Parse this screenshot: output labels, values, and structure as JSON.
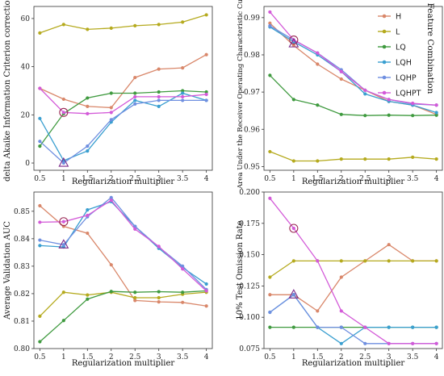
{
  "legend": {
    "title": "Feature Combination",
    "items": [
      {
        "name": "H",
        "color": "#d9876a"
      },
      {
        "name": "L",
        "color": "#b5aa1e"
      },
      {
        "name": "LQ",
        "color": "#3f9a3f"
      },
      {
        "name": "LQH",
        "color": "#3a9fd0"
      },
      {
        "name": "LQHP",
        "color": "#6f8fe0"
      },
      {
        "name": "LQHPT",
        "color": "#d35ad8"
      }
    ]
  },
  "chart_data": [
    {
      "type": "line",
      "title": "",
      "xlabel": "Regularization multiplier",
      "ylabel": "delta Akaike Information Criterion correction",
      "x": [
        0.5,
        1,
        1.5,
        2,
        2.5,
        3,
        3.5,
        4
      ],
      "xticks": [
        "0.5",
        "1",
        "1.5",
        "2",
        "2.5",
        "3",
        "3.5",
        "4"
      ],
      "ylim": [
        -3,
        65
      ],
      "yticks": [
        0,
        20,
        40,
        60
      ],
      "series": [
        {
          "name": "H",
          "values": [
            31,
            26.5,
            23.5,
            23,
            35.5,
            39,
            39.5,
            45
          ]
        },
        {
          "name": "L",
          "values": [
            54,
            57.5,
            55.5,
            56,
            57,
            57.5,
            58.5,
            61.5
          ]
        },
        {
          "name": "LQ",
          "values": [
            7,
            20.5,
            27,
            29,
            29,
            29.5,
            30,
            29.5
          ]
        },
        {
          "name": "LQH",
          "values": [
            18.5,
            1,
            5,
            17,
            26,
            23.5,
            29,
            26
          ]
        },
        {
          "name": "LQHP",
          "values": [
            9,
            0,
            7,
            18,
            24.5,
            26,
            26,
            26
          ]
        },
        {
          "name": "LQHPT",
          "values": [
            31,
            21,
            20.5,
            21,
            27.5,
            27.5,
            27.5,
            28.5
          ]
        }
      ],
      "markers": {
        "circle": {
          "x": 1,
          "y": 21
        },
        "triangle": {
          "x": 1,
          "y": 0
        }
      }
    },
    {
      "type": "line",
      "title": "",
      "xlabel": "Regularization multiplier",
      "ylabel": "Area Under the Receiver Operating Characteristic Curve",
      "x": [
        0.5,
        1,
        1.5,
        2,
        2.5,
        3,
        3.5,
        4
      ],
      "xticks": [
        "0.5",
        "1",
        "1.5",
        "2",
        "2.5",
        "3",
        "3.5",
        "4"
      ],
      "ylim": [
        0.949,
        0.993
      ],
      "yticks": [
        0.95,
        0.96,
        0.97,
        0.98,
        0.99
      ],
      "ytick_labels": [
        "0.95",
        "0.96",
        "0.97",
        "0.98",
        "0.99"
      ],
      "series": [
        {
          "name": "H",
          "values": [
            0.9885,
            0.9825,
            0.9775,
            0.9735,
            0.9705,
            0.9675,
            0.9665,
            0.964
          ]
        },
        {
          "name": "L",
          "values": [
            0.954,
            0.9515,
            0.9515,
            0.952,
            0.952,
            0.952,
            0.9525,
            0.952
          ]
        },
        {
          "name": "LQ",
          "values": [
            0.9745,
            0.968,
            0.9665,
            0.964,
            0.9637,
            0.9638,
            0.9637,
            0.9638
          ]
        },
        {
          "name": "LQH",
          "values": [
            0.9875,
            0.9835,
            0.98,
            0.9755,
            0.9695,
            0.9675,
            0.9665,
            0.9645
          ]
        },
        {
          "name": "LQHP",
          "values": [
            0.9878,
            0.984,
            0.9805,
            0.976,
            0.9705,
            0.968,
            0.9668,
            0.9665
          ]
        },
        {
          "name": "LQHPT",
          "values": [
            0.9915,
            0.984,
            0.9805,
            0.9755,
            0.9705,
            0.968,
            0.967,
            0.9665
          ]
        }
      ],
      "markers": {
        "circle": {
          "x": 1,
          "y": 0.984
        },
        "triangle": {
          "x": 1,
          "y": 0.983
        }
      }
    },
    {
      "type": "line",
      "title": "",
      "xlabel": "Regularization multiplier",
      "ylabel": "Average Validation AUC",
      "x": [
        0.5,
        1,
        1.5,
        2,
        2.5,
        3,
        3.5,
        4
      ],
      "xticks": [
        "0.5",
        "1",
        "1.5",
        "2",
        "2.5",
        "3",
        "3.5",
        "4"
      ],
      "ylim": [
        0.8,
        0.857
      ],
      "yticks": [
        0.8,
        0.81,
        0.82,
        0.83,
        0.84,
        0.85
      ],
      "ytick_labels": [
        "0.80",
        "0.81",
        "0.82",
        "0.83",
        "0.84",
        "0.85"
      ],
      "series": [
        {
          "name": "H",
          "values": [
            0.852,
            0.8445,
            0.842,
            0.8305,
            0.8175,
            0.817,
            0.8168,
            0.8155
          ]
        },
        {
          "name": "L",
          "values": [
            0.8118,
            0.8205,
            0.8195,
            0.8205,
            0.8185,
            0.8185,
            0.8198,
            0.8205
          ]
        },
        {
          "name": "LQ",
          "values": [
            0.8025,
            0.8102,
            0.818,
            0.8208,
            0.8205,
            0.8207,
            0.8205,
            0.821
          ]
        },
        {
          "name": "LQH",
          "values": [
            0.8375,
            0.837,
            0.8505,
            0.8535,
            0.8445,
            0.8365,
            0.8295,
            0.8235
          ]
        },
        {
          "name": "LQHP",
          "values": [
            0.8395,
            0.8378,
            0.848,
            0.855,
            0.8445,
            0.837,
            0.83,
            0.8215
          ]
        },
        {
          "name": "LQHPT",
          "values": [
            0.846,
            0.8462,
            0.8485,
            0.854,
            0.8435,
            0.8372,
            0.829,
            0.821
          ]
        }
      ],
      "markers": {
        "circle": {
          "x": 1,
          "y": 0.8462
        },
        "triangle": {
          "x": 1,
          "y": 0.8378
        }
      }
    },
    {
      "type": "line",
      "title": "",
      "xlabel": "Regularization multiplier",
      "ylabel": "10% Test Omission Rate",
      "x": [
        0.5,
        1,
        1.5,
        2,
        2.5,
        3,
        3.5,
        4
      ],
      "xticks": [
        "0.5",
        "1",
        "1.5",
        "2",
        "2.5",
        "3",
        "3.5",
        "4"
      ],
      "ylim": [
        0.075,
        0.2
      ],
      "yticks": [
        0.075,
        0.1,
        0.125,
        0.15,
        0.175,
        0.2
      ],
      "ytick_labels": [
        "0.075",
        "0.100",
        "0.125",
        "0.150",
        "0.175",
        "0.200"
      ],
      "series": [
        {
          "name": "H",
          "values": [
            0.118,
            0.118,
            0.105,
            0.132,
            0.145,
            0.158,
            0.145,
            0.145
          ]
        },
        {
          "name": "L",
          "values": [
            0.132,
            0.145,
            0.145,
            0.145,
            0.145,
            0.145,
            0.145,
            0.145
          ]
        },
        {
          "name": "LQ",
          "values": [
            0.092,
            0.092,
            0.092,
            0.092,
            0.092,
            0.092,
            0.092,
            0.092
          ]
        },
        {
          "name": "LQH",
          "values": [
            0.104,
            0.118,
            0.092,
            0.079,
            0.092,
            0.092,
            0.092,
            0.092
          ]
        },
        {
          "name": "LQHP",
          "values": [
            0.104,
            0.118,
            0.092,
            0.092,
            0.079,
            0.079,
            0.079,
            0.079
          ]
        },
        {
          "name": "LQHPT",
          "values": [
            0.195,
            0.171,
            0.145,
            0.105,
            0.092,
            0.079,
            0.079,
            0.079
          ]
        }
      ],
      "markers": {
        "circle": {
          "x": 1,
          "y": 0.171
        },
        "triangle": {
          "x": 1,
          "y": 0.118
        }
      }
    }
  ]
}
